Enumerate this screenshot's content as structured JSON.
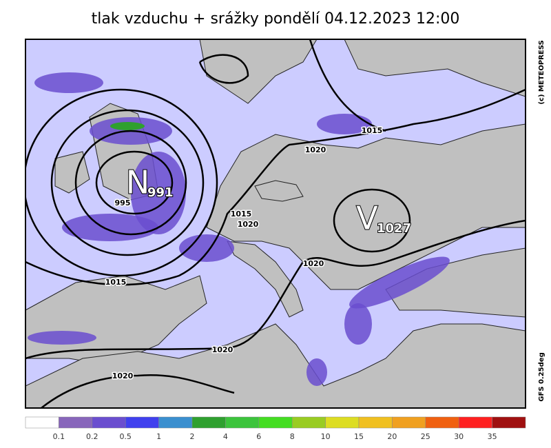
{
  "title": "tlak vzduchu + srážky pondělí 04.12.2023 12:00",
  "credit": "(c) METEOPRESS",
  "model": "GFS 0.25deg",
  "centers": [
    {
      "letter": "N",
      "value": "991"
    },
    {
      "letter": "V",
      "value": "1027"
    }
  ],
  "isobar_labels": [
    "995",
    "1015",
    "1020",
    "1015",
    "1020",
    "1015",
    "1020",
    "1020",
    "1020"
  ],
  "legend": {
    "colors": [
      "#ffffff",
      "#8866bb",
      "#6a4ecf",
      "#4040ee",
      "#3a8fcf",
      "#2fa02f",
      "#3cc43c",
      "#44dd22",
      "#99cc22",
      "#dddd22",
      "#f0c020",
      "#f0a020",
      "#f06010",
      "#ff2020",
      "#a01010"
    ],
    "labels": [
      "0.1",
      "0.2",
      "0.5",
      "1",
      "2",
      "4",
      "6",
      "8",
      "10",
      "15",
      "20",
      "25",
      "30",
      "35"
    ]
  }
}
